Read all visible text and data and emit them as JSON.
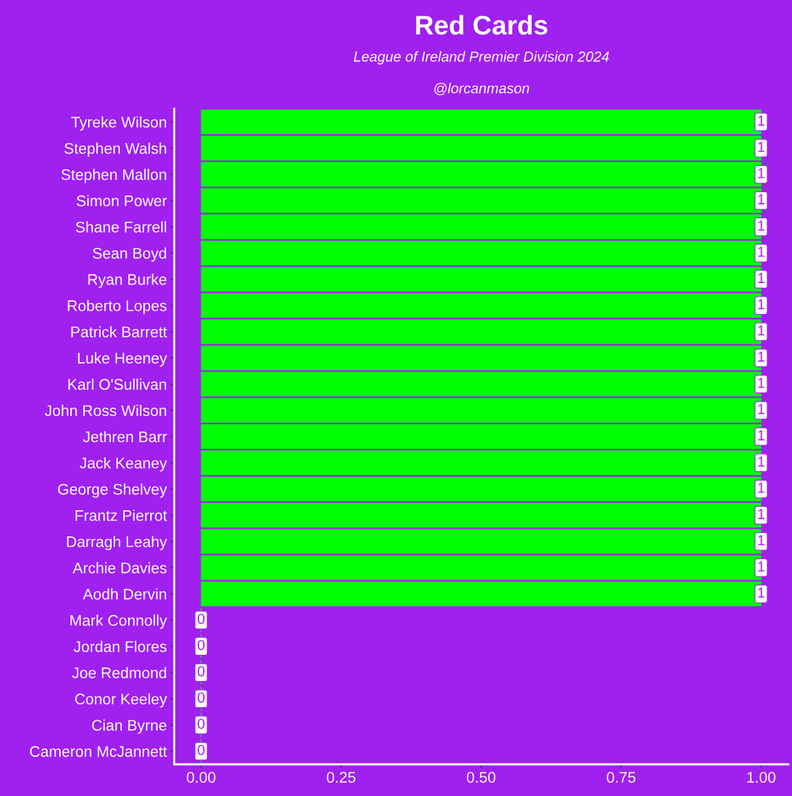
{
  "chart_data": {
    "type": "bar",
    "orientation": "horizontal",
    "title": "Red Cards",
    "subtitle": "League of Ireland Premier Division 2024",
    "annotations": [
      "@lorcanmason"
    ],
    "categories": [
      "Tyreke Wilson",
      "Stephen Walsh",
      "Stephen Mallon",
      "Simon Power",
      "Shane Farrell",
      "Sean Boyd",
      "Ryan Burke",
      "Roberto Lopes",
      "Patrick Barrett",
      "Luke Heeney",
      "Karl O'Sullivan",
      "John Ross Wilson",
      "Jethren Barr",
      "Jack Keaney",
      "George Shelvey",
      "Frantz Pierrot",
      "Darragh Leahy",
      "Archie Davies",
      "Aodh Dervin",
      "Mark Connolly",
      "Jordan Flores",
      "Joe Redmond",
      "Conor Keeley",
      "Cian Byrne",
      "Cameron McJannett"
    ],
    "values": [
      1,
      1,
      1,
      1,
      1,
      1,
      1,
      1,
      1,
      1,
      1,
      1,
      1,
      1,
      1,
      1,
      1,
      1,
      1,
      0,
      0,
      0,
      0,
      0,
      0
    ],
    "color": "#00ff00",
    "xlim": [
      -0.048,
      1.049
    ],
    "xticks": [
      {
        "value": 0,
        "label": "0.00"
      },
      {
        "value": 0.25,
        "label": "0.25"
      },
      {
        "value": 0.5,
        "label": "0.50"
      },
      {
        "value": 0.75,
        "label": "0.75"
      },
      {
        "value": 1,
        "label": "1.00"
      }
    ],
    "data_labels": true,
    "grid": false,
    "legend": false
  }
}
